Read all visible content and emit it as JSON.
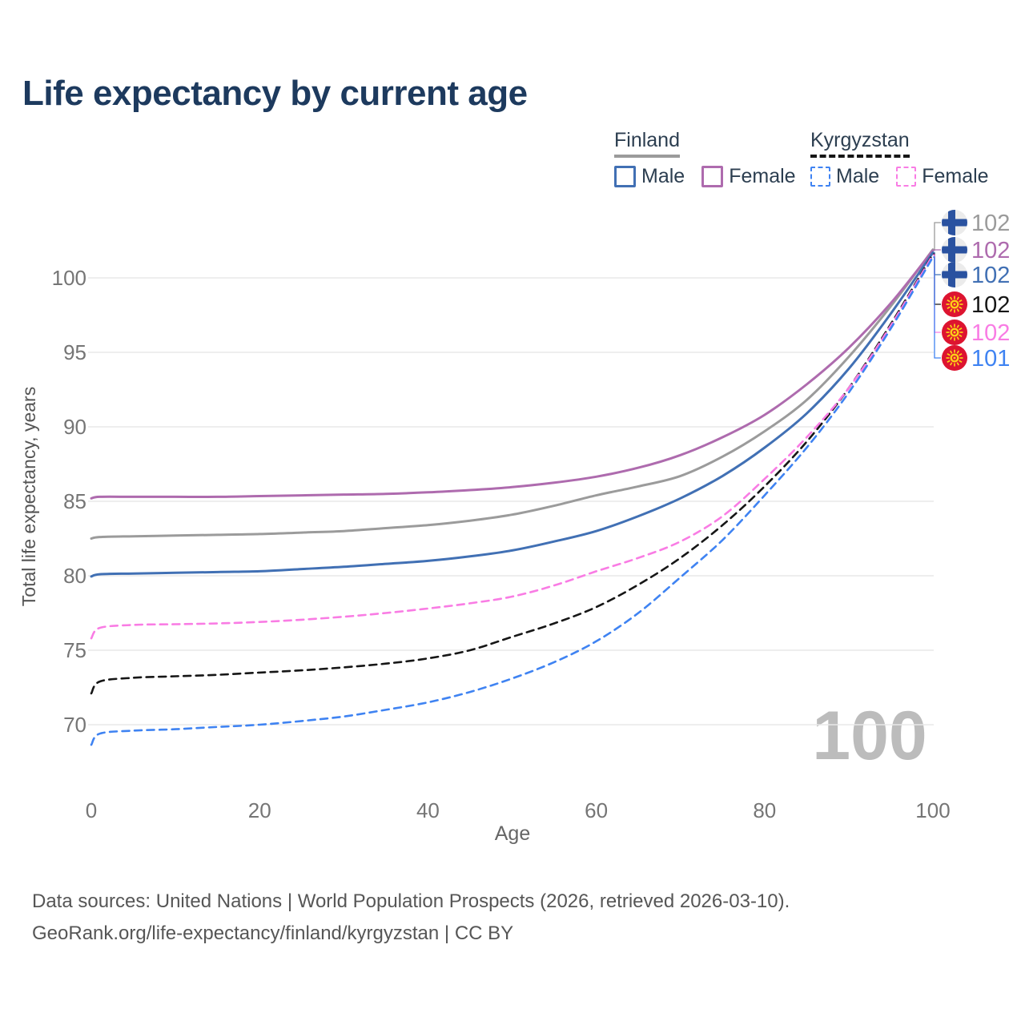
{
  "page": {
    "title": "Life expectancy by current age"
  },
  "legend": {
    "groups": [
      {
        "country": "Finland",
        "line_style": "solid",
        "underline_color": "#9b9b9b",
        "male_label": "Male",
        "female_label": "Female",
        "male_color": "#4170b4",
        "female_color": "#ae6bae"
      },
      {
        "country": "Kyrgyzstan",
        "line_style": "dashed",
        "underline_color": "#161616",
        "male_label": "Male",
        "female_label": "Female",
        "male_color": "#3f83f2",
        "female_color": "#f97ce4"
      }
    ]
  },
  "chart_data": {
    "type": "line",
    "title": "Life expectancy by current age",
    "xlabel": "Age",
    "ylabel": "Total life expectancy, years",
    "x_ticks": [
      0,
      20,
      40,
      60,
      80,
      100
    ],
    "y_ticks": [
      70,
      75,
      80,
      85,
      90,
      95,
      100
    ],
    "xlim": [
      0,
      100
    ],
    "ylim": [
      68,
      104
    ],
    "grid": "horizontal-only",
    "gridline_color": "#e8e8e8",
    "age_watermark": "100",
    "watermark_color": "#bcbcbc",
    "legend_position": "top-right",
    "ages": [
      0,
      1,
      5,
      10,
      15,
      20,
      25,
      30,
      35,
      40,
      45,
      50,
      55,
      60,
      65,
      70,
      75,
      80,
      85,
      90,
      95,
      100
    ],
    "series": [
      {
        "id": "finland-total",
        "country": "Finland",
        "sex": "Total",
        "color": "#9b9b9b",
        "dashed": false,
        "flag": "finland",
        "end_label": "102",
        "values": [
          82.5,
          82.6,
          82.65,
          82.7,
          82.75,
          82.8,
          82.9,
          83.0,
          83.2,
          83.4,
          83.7,
          84.1,
          84.7,
          85.4,
          86.0,
          86.7,
          88.0,
          89.7,
          91.8,
          94.7,
          98.1,
          101.9
        ]
      },
      {
        "id": "finland-female",
        "country": "Finland",
        "sex": "Female",
        "color": "#ae6bae",
        "dashed": false,
        "flag": "finland",
        "end_label": "102",
        "values": [
          85.2,
          85.3,
          85.3,
          85.3,
          85.3,
          85.35,
          85.4,
          85.45,
          85.5,
          85.6,
          85.75,
          85.95,
          86.25,
          86.65,
          87.25,
          88.1,
          89.3,
          90.8,
          92.85,
          95.3,
          98.3,
          101.85
        ]
      },
      {
        "id": "finland-male",
        "country": "Finland",
        "sex": "Male",
        "color": "#4170b4",
        "dashed": false,
        "flag": "finland",
        "end_label": "102",
        "values": [
          79.95,
          80.1,
          80.15,
          80.2,
          80.25,
          80.3,
          80.45,
          80.6,
          80.8,
          81.0,
          81.3,
          81.7,
          82.3,
          83.0,
          84.0,
          85.2,
          86.7,
          88.6,
          90.9,
          93.9,
          97.6,
          101.7
        ]
      },
      {
        "id": "kyrgyzstan-total",
        "country": "Kyrgyzstan",
        "sex": "Total",
        "color": "#161616",
        "dashed": true,
        "flag": "kyrgyzstan",
        "end_label": "102",
        "values": [
          72.1,
          72.9,
          73.15,
          73.25,
          73.35,
          73.5,
          73.65,
          73.85,
          74.1,
          74.45,
          75.0,
          75.9,
          76.8,
          77.9,
          79.4,
          81.2,
          83.4,
          86.0,
          89.0,
          92.6,
          96.9,
          101.6
        ]
      },
      {
        "id": "kyrgyzstan-female",
        "country": "Kyrgyzstan",
        "sex": "Female",
        "color": "#f97ce4",
        "dashed": true,
        "flag": "kyrgyzstan",
        "end_label": "102",
        "values": [
          75.8,
          76.5,
          76.7,
          76.75,
          76.8,
          76.9,
          77.05,
          77.25,
          77.5,
          77.8,
          78.15,
          78.6,
          79.35,
          80.3,
          81.2,
          82.3,
          84.0,
          86.5,
          89.3,
          92.6,
          96.8,
          101.55
        ]
      },
      {
        "id": "kyrgyzstan-male",
        "country": "Kyrgyzstan",
        "sex": "Male",
        "color": "#3f83f2",
        "dashed": true,
        "flag": "kyrgyzstan",
        "end_label": "101",
        "values": [
          68.65,
          69.4,
          69.6,
          69.7,
          69.85,
          70.0,
          70.25,
          70.55,
          71.0,
          71.5,
          72.2,
          73.1,
          74.2,
          75.6,
          77.5,
          79.9,
          82.4,
          85.4,
          88.6,
          92.3,
          96.6,
          101.4
        ]
      }
    ]
  },
  "footer": {
    "line1": "Data sources: United Nations | World Population Prospects (2026, retrieved 2026-03-10).",
    "line2": "GeoRank.org/life-expectancy/finland/kyrgyzstan | CC BY"
  }
}
